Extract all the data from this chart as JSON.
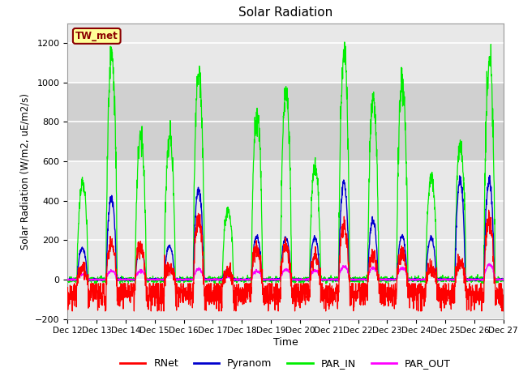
{
  "title": "Solar Radiation",
  "ylabel": "Solar Radiation (W/m2, uE/m2/s)",
  "xlabel": "Time",
  "ylim": [
    -200,
    1300
  ],
  "yticks": [
    -200,
    0,
    200,
    400,
    600,
    800,
    1000,
    1200
  ],
  "shaded_region": [
    600,
    1000
  ],
  "station_label": "TW_met",
  "station_label_color": "#8B0000",
  "station_box_color": "#FFFF99",
  "x_tick_labels": [
    "Dec 12",
    "Dec 13",
    "Dec 14",
    "Dec 15",
    "Dec 16",
    "Dec 17",
    "Dec 18",
    "Dec 19",
    "Dec 20",
    "Dec 21",
    "Dec 22",
    "Dec 23",
    "Dec 24",
    "Dec 25",
    "Dec 26",
    "Dec 27"
  ],
  "colors": {
    "RNet": "#FF0000",
    "Pyranom": "#0000CD",
    "PAR_IN": "#00EE00",
    "PAR_OUT": "#FF00FF"
  },
  "background_color": "#FFFFFF",
  "plot_bg_color": "#E8E8E8",
  "grid_color": "#FFFFFF",
  "shaded_bg_color": "#D0D0D0"
}
